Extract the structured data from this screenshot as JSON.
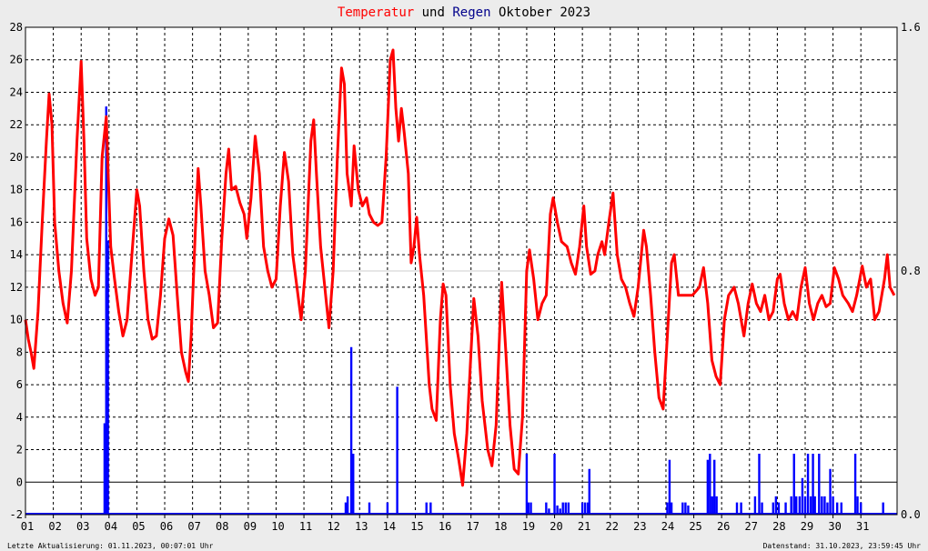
{
  "title": {
    "part1": "Temperatur",
    "part2": " und ",
    "part3": "Regen",
    "part4": " Oktober 2023",
    "color_temp": "#ff0000",
    "color_rain": "#00008b"
  },
  "footer": {
    "left": "Letzte Aktualisierung: 01.11.2023, 00:07:01 Uhr",
    "right": "Datenstand: 31.10.2023, 23:59:45 Uhr"
  },
  "chart_data": {
    "type": "line",
    "x_ticks": [
      "01",
      "02",
      "03",
      "04",
      "05",
      "06",
      "07",
      "08",
      "09",
      "10",
      "11",
      "12",
      "13",
      "14",
      "15",
      "16",
      "17",
      "18",
      "19",
      "20",
      "21",
      "22",
      "23",
      "24",
      "25",
      "26",
      "27",
      "28",
      "29",
      "30",
      "31"
    ],
    "ylim": [
      -2,
      28
    ],
    "y_ticks": [
      28,
      26,
      24,
      22,
      20,
      18,
      16,
      14,
      12,
      10,
      8,
      6,
      4,
      2,
      0,
      -2
    ],
    "y2lim": [
      0,
      1.6
    ],
    "y2_ticks": [
      "1.6",
      "0.8",
      "0.0"
    ],
    "grid": true,
    "series": [
      {
        "name": "Temperatur",
        "color": "#ff0000",
        "axis": "left",
        "points": [
          [
            1.0,
            10.0
          ],
          [
            1.1,
            8.8
          ],
          [
            1.2,
            8.0
          ],
          [
            1.3,
            7.0
          ],
          [
            1.45,
            10.5
          ],
          [
            1.6,
            16
          ],
          [
            1.75,
            21
          ],
          [
            1.85,
            23.9
          ],
          [
            1.95,
            22
          ],
          [
            2.05,
            16
          ],
          [
            2.2,
            13
          ],
          [
            2.35,
            11
          ],
          [
            2.5,
            9.8
          ],
          [
            2.65,
            13
          ],
          [
            2.85,
            21
          ],
          [
            3.0,
            25.9
          ],
          [
            3.1,
            21
          ],
          [
            3.2,
            15
          ],
          [
            3.35,
            12.5
          ],
          [
            3.5,
            11.5
          ],
          [
            3.62,
            12.0
          ],
          [
            3.75,
            20
          ],
          [
            3.9,
            22.5
          ],
          [
            3.98,
            18.5
          ],
          [
            4.06,
            14.5
          ],
          [
            4.2,
            12.5
          ],
          [
            4.35,
            10.5
          ],
          [
            4.5,
            9.0
          ],
          [
            4.65,
            10.0
          ],
          [
            4.8,
            13.5
          ],
          [
            5.0,
            18.0
          ],
          [
            5.1,
            17.0
          ],
          [
            5.25,
            13.0
          ],
          [
            5.4,
            10.0
          ],
          [
            5.55,
            8.8
          ],
          [
            5.7,
            9.0
          ],
          [
            5.85,
            11.5
          ],
          [
            6.0,
            15.0
          ],
          [
            6.15,
            16.2
          ],
          [
            6.3,
            15.2
          ],
          [
            6.45,
            11.5
          ],
          [
            6.6,
            8.0
          ],
          [
            6.75,
            6.8
          ],
          [
            6.85,
            6.2
          ],
          [
            6.95,
            9.0
          ],
          [
            7.1,
            15.5
          ],
          [
            7.2,
            19.3
          ],
          [
            7.3,
            17.0
          ],
          [
            7.45,
            13.0
          ],
          [
            7.6,
            11.5
          ],
          [
            7.75,
            9.5
          ],
          [
            7.9,
            9.8
          ],
          [
            8.05,
            15.0
          ],
          [
            8.2,
            19.0
          ],
          [
            8.3,
            20.5
          ],
          [
            8.4,
            18.0
          ],
          [
            8.55,
            18.2
          ],
          [
            8.7,
            17.2
          ],
          [
            8.85,
            16.5
          ],
          [
            8.95,
            15.0
          ],
          [
            9.1,
            17.5
          ],
          [
            9.25,
            21.3
          ],
          [
            9.4,
            19.0
          ],
          [
            9.55,
            14.5
          ],
          [
            9.7,
            13.0
          ],
          [
            9.85,
            12.0
          ],
          [
            10.0,
            12.5
          ],
          [
            10.15,
            17.0
          ],
          [
            10.3,
            20.3
          ],
          [
            10.45,
            18.5
          ],
          [
            10.6,
            14.0
          ],
          [
            10.75,
            12.0
          ],
          [
            10.9,
            10.0
          ],
          [
            11.05,
            13.0
          ],
          [
            11.25,
            21.0
          ],
          [
            11.35,
            22.3
          ],
          [
            11.45,
            19.0
          ],
          [
            11.6,
            14.5
          ],
          [
            11.75,
            12.0
          ],
          [
            11.9,
            9.5
          ],
          [
            12.05,
            13.0
          ],
          [
            12.2,
            20.0
          ],
          [
            12.35,
            25.5
          ],
          [
            12.45,
            24.5
          ],
          [
            12.55,
            19.0
          ],
          [
            12.7,
            17.0
          ],
          [
            12.8,
            20.7
          ],
          [
            12.95,
            18.0
          ],
          [
            13.1,
            17.0
          ],
          [
            13.25,
            17.5
          ],
          [
            13.35,
            16.5
          ],
          [
            13.5,
            16.0
          ],
          [
            13.65,
            15.8
          ],
          [
            13.8,
            16.0
          ],
          [
            13.95,
            20.0
          ],
          [
            14.1,
            26.0
          ],
          [
            14.2,
            26.6
          ],
          [
            14.3,
            23.0
          ],
          [
            14.4,
            21.0
          ],
          [
            14.5,
            23.0
          ],
          [
            14.6,
            21.5
          ],
          [
            14.75,
            19.0
          ],
          [
            14.85,
            13.5
          ],
          [
            14.95,
            14.5
          ],
          [
            15.05,
            16.3
          ],
          [
            15.15,
            14.0
          ],
          [
            15.3,
            11.5
          ],
          [
            15.5,
            6.0
          ],
          [
            15.6,
            4.5
          ],
          [
            15.75,
            3.8
          ],
          [
            15.9,
            10.0
          ],
          [
            16.0,
            12.2
          ],
          [
            16.1,
            11.5
          ],
          [
            16.25,
            6.0
          ],
          [
            16.4,
            3.0
          ],
          [
            16.55,
            1.5
          ],
          [
            16.7,
            -0.2
          ],
          [
            16.85,
            3.0
          ],
          [
            17.0,
            8.0
          ],
          [
            17.1,
            11.3
          ],
          [
            17.25,
            9.0
          ],
          [
            17.4,
            5.0
          ],
          [
            17.6,
            2.0
          ],
          [
            17.75,
            1.0
          ],
          [
            17.9,
            3.5
          ],
          [
            18.0,
            8.0
          ],
          [
            18.1,
            12.3
          ],
          [
            18.25,
            8.0
          ],
          [
            18.4,
            3.5
          ],
          [
            18.55,
            0.8
          ],
          [
            18.7,
            0.5
          ],
          [
            18.85,
            4.0
          ],
          [
            19.0,
            13.0
          ],
          [
            19.1,
            14.3
          ],
          [
            19.25,
            12.5
          ],
          [
            19.4,
            10.0
          ],
          [
            19.55,
            11.0
          ],
          [
            19.7,
            11.5
          ],
          [
            19.85,
            16.5
          ],
          [
            19.95,
            17.5
          ],
          [
            20.1,
            16.0
          ],
          [
            20.25,
            14.8
          ],
          [
            20.45,
            14.5
          ],
          [
            20.6,
            13.5
          ],
          [
            20.75,
            12.8
          ],
          [
            20.9,
            14.5
          ],
          [
            21.05,
            17.0
          ],
          [
            21.15,
            14.5
          ],
          [
            21.3,
            12.8
          ],
          [
            21.45,
            13.0
          ],
          [
            21.55,
            14.0
          ],
          [
            21.7,
            14.8
          ],
          [
            21.8,
            14.0
          ],
          [
            21.95,
            16.0
          ],
          [
            22.1,
            17.8
          ],
          [
            22.25,
            14.0
          ],
          [
            22.4,
            12.5
          ],
          [
            22.55,
            12.0
          ],
          [
            22.7,
            11.0
          ],
          [
            22.85,
            10.2
          ],
          [
            23.0,
            12.0
          ],
          [
            23.2,
            15.5
          ],
          [
            23.3,
            14.5
          ],
          [
            23.45,
            11.5
          ],
          [
            23.6,
            8.0
          ],
          [
            23.75,
            5.2
          ],
          [
            23.9,
            4.5
          ],
          [
            24.05,
            9.0
          ],
          [
            24.2,
            13.5
          ],
          [
            24.3,
            14.0
          ],
          [
            24.45,
            11.5
          ],
          [
            24.7,
            11.5
          ],
          [
            24.95,
            11.5
          ],
          [
            25.2,
            12.0
          ],
          [
            25.35,
            13.2
          ],
          [
            25.5,
            11.0
          ],
          [
            25.65,
            7.5
          ],
          [
            25.8,
            6.5
          ],
          [
            25.95,
            6.0
          ],
          [
            26.1,
            10.0
          ],
          [
            26.25,
            11.5
          ],
          [
            26.45,
            12.0
          ],
          [
            26.6,
            11.0
          ],
          [
            26.8,
            9.0
          ],
          [
            26.95,
            11.0
          ],
          [
            27.1,
            12.2
          ],
          [
            27.25,
            11.0
          ],
          [
            27.4,
            10.5
          ],
          [
            27.55,
            11.5
          ],
          [
            27.7,
            10.0
          ],
          [
            27.85,
            10.5
          ],
          [
            28.0,
            12.5
          ],
          [
            28.1,
            12.8
          ],
          [
            28.25,
            11.0
          ],
          [
            28.4,
            10.0
          ],
          [
            28.55,
            10.5
          ],
          [
            28.7,
            10.0
          ],
          [
            28.85,
            12.0
          ],
          [
            29.0,
            13.2
          ],
          [
            29.15,
            11.0
          ],
          [
            29.3,
            10.0
          ],
          [
            29.45,
            11.0
          ],
          [
            29.6,
            11.5
          ],
          [
            29.75,
            10.8
          ],
          [
            29.9,
            11.0
          ],
          [
            30.05,
            13.2
          ],
          [
            30.2,
            12.5
          ],
          [
            30.35,
            11.5
          ],
          [
            30.55,
            11.0
          ],
          [
            30.7,
            10.5
          ],
          [
            30.85,
            11.5
          ],
          [
            31.05,
            13.3
          ],
          [
            31.2,
            12.0
          ],
          [
            31.35,
            12.5
          ],
          [
            31.5,
            10.0
          ],
          [
            31.65,
            10.5
          ],
          [
            31.85,
            12.5
          ],
          [
            31.95,
            14.0
          ],
          [
            32.05,
            12.0
          ],
          [
            32.2,
            11.5
          ]
        ]
      },
      {
        "name": "Regen",
        "color": "#0000ff",
        "axis": "right",
        "points": [
          [
            3.84,
            0.3
          ],
          [
            3.9,
            1.34
          ],
          [
            3.96,
            0.9
          ],
          [
            12.5,
            0.04
          ],
          [
            12.57,
            0.06
          ],
          [
            12.7,
            0.55
          ],
          [
            12.77,
            0.2
          ],
          [
            13.35,
            0.04
          ],
          [
            14.0,
            0.04
          ],
          [
            14.35,
            0.42
          ],
          [
            15.4,
            0.04
          ],
          [
            15.55,
            0.04
          ],
          [
            19.0,
            0.2
          ],
          [
            19.06,
            0.04
          ],
          [
            19.15,
            0.04
          ],
          [
            19.7,
            0.04
          ],
          [
            19.8,
            0.02
          ],
          [
            20.0,
            0.2
          ],
          [
            20.1,
            0.03
          ],
          [
            20.2,
            0.02
          ],
          [
            20.3,
            0.04
          ],
          [
            20.4,
            0.04
          ],
          [
            20.5,
            0.04
          ],
          [
            21.0,
            0.04
          ],
          [
            21.1,
            0.04
          ],
          [
            21.2,
            0.04
          ],
          [
            21.25,
            0.15
          ],
          [
            24.05,
            0.04
          ],
          [
            24.13,
            0.18
          ],
          [
            24.2,
            0.04
          ],
          [
            24.6,
            0.04
          ],
          [
            24.7,
            0.04
          ],
          [
            24.8,
            0.03
          ],
          [
            25.5,
            0.18
          ],
          [
            25.58,
            0.2
          ],
          [
            25.66,
            0.06
          ],
          [
            25.74,
            0.18
          ],
          [
            25.82,
            0.06
          ],
          [
            26.55,
            0.04
          ],
          [
            26.7,
            0.04
          ],
          [
            27.2,
            0.06
          ],
          [
            27.35,
            0.2
          ],
          [
            27.45,
            0.04
          ],
          [
            27.85,
            0.04
          ],
          [
            27.95,
            0.06
          ],
          [
            28.05,
            0.04
          ],
          [
            28.3,
            0.04
          ],
          [
            28.5,
            0.06
          ],
          [
            28.6,
            0.2
          ],
          [
            28.68,
            0.06
          ],
          [
            28.8,
            0.06
          ],
          [
            28.9,
            0.12
          ],
          [
            29.0,
            0.06
          ],
          [
            29.1,
            0.2
          ],
          [
            29.2,
            0.06
          ],
          [
            29.28,
            0.2
          ],
          [
            29.35,
            0.06
          ],
          [
            29.5,
            0.2
          ],
          [
            29.6,
            0.06
          ],
          [
            29.7,
            0.06
          ],
          [
            29.8,
            0.04
          ],
          [
            29.9,
            0.15
          ],
          [
            30.0,
            0.06
          ],
          [
            30.15,
            0.04
          ],
          [
            30.3,
            0.04
          ],
          [
            30.8,
            0.2
          ],
          [
            30.88,
            0.06
          ],
          [
            31.0,
            0.04
          ],
          [
            31.8,
            0.04
          ]
        ]
      }
    ]
  }
}
